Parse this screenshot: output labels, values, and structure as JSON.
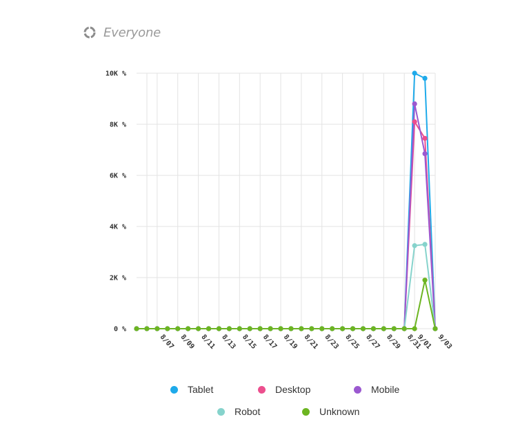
{
  "header": {
    "segment_label": "Everyone",
    "icon": "circle-dashed-icon"
  },
  "chart_data": {
    "type": "line",
    "y_tick_labels": [
      "0 %",
      "2K %",
      "4K %",
      "6K %",
      "8K %",
      "10K %"
    ],
    "y_ticks": [
      0,
      2000,
      4000,
      6000,
      8000,
      10000
    ],
    "ylim": [
      0,
      10000
    ],
    "x_tick_labels": [
      "8/07",
      "8/09",
      "8/11",
      "8/13",
      "8/15",
      "8/17",
      "8/19",
      "8/21",
      "8/23",
      "8/25",
      "8/27",
      "8/29",
      "8/31",
      "9/01",
      "9/03"
    ],
    "x": [
      "8/05",
      "8/06",
      "8/07",
      "8/08",
      "8/09",
      "8/10",
      "8/11",
      "8/12",
      "8/13",
      "8/14",
      "8/15",
      "8/16",
      "8/17",
      "8/18",
      "8/19",
      "8/20",
      "8/21",
      "8/22",
      "8/23",
      "8/24",
      "8/25",
      "8/26",
      "8/27",
      "8/28",
      "8/29",
      "8/30",
      "8/31",
      "9/01",
      "9/02",
      "9/03"
    ],
    "grid": true,
    "legend_position": "bottom-center",
    "series": [
      {
        "name": "Tablet",
        "color": "#1eaaea",
        "values": [
          0,
          0,
          0,
          0,
          0,
          0,
          0,
          0,
          0,
          0,
          0,
          0,
          0,
          0,
          0,
          0,
          0,
          0,
          0,
          0,
          0,
          0,
          0,
          0,
          0,
          0,
          0,
          10000,
          9800,
          0
        ]
      },
      {
        "name": "Desktop",
        "color": "#ec4f8e",
        "values": [
          0,
          0,
          0,
          0,
          0,
          0,
          0,
          0,
          0,
          0,
          0,
          0,
          0,
          0,
          0,
          0,
          0,
          0,
          0,
          0,
          0,
          0,
          0,
          0,
          0,
          0,
          0,
          8100,
          7450,
          0
        ]
      },
      {
        "name": "Mobile",
        "color": "#9b59d0",
        "values": [
          0,
          0,
          0,
          0,
          0,
          0,
          0,
          0,
          0,
          0,
          0,
          0,
          0,
          0,
          0,
          0,
          0,
          0,
          0,
          0,
          0,
          0,
          0,
          0,
          0,
          0,
          0,
          8800,
          6850,
          0
        ]
      },
      {
        "name": "Robot",
        "color": "#86d3cc",
        "values": [
          0,
          0,
          0,
          0,
          0,
          0,
          0,
          0,
          0,
          0,
          0,
          0,
          0,
          0,
          0,
          0,
          0,
          0,
          0,
          0,
          0,
          0,
          0,
          0,
          0,
          0,
          0,
          3250,
          3300,
          0
        ]
      },
      {
        "name": "Unknown",
        "color": "#6cb521",
        "values": [
          0,
          0,
          0,
          0,
          0,
          0,
          0,
          0,
          0,
          0,
          0,
          0,
          0,
          0,
          0,
          0,
          0,
          0,
          0,
          0,
          0,
          0,
          0,
          0,
          0,
          0,
          0,
          0,
          1900,
          0
        ]
      }
    ]
  }
}
